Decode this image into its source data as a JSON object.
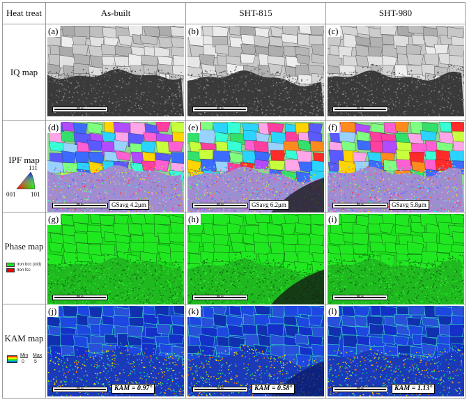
{
  "headers": {
    "heat_treat": "Heat treat",
    "col1": "As-built",
    "col2": "SHT-815",
    "col3": "SHT-980"
  },
  "rows": {
    "iq": "IQ map",
    "ipf": "IPF map",
    "phase": "Phase map",
    "kam": "KAM map"
  },
  "panel_labels": [
    "(a)",
    "(b)",
    "(c)",
    "(d)",
    "(e)",
    "(f)",
    "(g)",
    "(h)",
    "(i)",
    "(j)",
    "(k)",
    "(l)"
  ],
  "scale_text": "800 um",
  "ipf_stats": [
    "GSavg 4.2μm",
    "GSavg 6.2μm",
    "GSavg 5.8μm"
  ],
  "kam_stats": [
    "KAM = 0.97°",
    "KAM = 0.58°",
    "KAM = 1.13°"
  ],
  "ipf_legend": {
    "top": "111",
    "left": "001",
    "right": "101"
  },
  "phase_legend": {
    "bcc": "Iron bcc (old)",
    "fcc": "Iron fcc",
    "bcc_color": "#1ee61e",
    "fcc_color": "#e60000"
  },
  "kam_legend": {
    "min": "Min",
    "max": "Max",
    "min_val": "0",
    "max_val": "5"
  }
}
